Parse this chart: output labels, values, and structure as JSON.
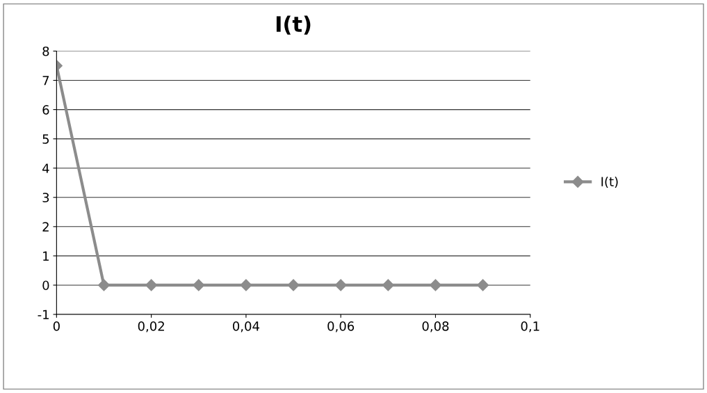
{
  "chart_data": {
    "type": "line",
    "title": "I(t)",
    "x": [
      0,
      0.01,
      0.02,
      0.03,
      0.04,
      0.05,
      0.06,
      0.07,
      0.08,
      0.09
    ],
    "series": [
      {
        "name": "I(t)",
        "color": "#8c8c8c",
        "values": [
          7.5,
          0,
          0,
          0,
          0,
          0,
          0,
          0,
          0,
          0
        ]
      }
    ],
    "xlim": [
      0,
      0.1
    ],
    "xticks": [
      0,
      {
        "value": 0.02,
        "label": "0,02"
      },
      {
        "value": 0.04,
        "label": "0,04"
      },
      {
        "value": 0.06,
        "label": "0,06"
      },
      {
        "value": 0.08,
        "label": "0,08"
      },
      {
        "value": 0.1,
        "label": "0,1"
      }
    ],
    "ylim": [
      -1,
      8
    ],
    "yticks": [
      -1,
      0,
      1,
      2,
      3,
      4,
      5,
      6,
      7,
      8
    ],
    "grid": "y",
    "legend": "right",
    "marker": "diamond",
    "line_style": "solid"
  }
}
